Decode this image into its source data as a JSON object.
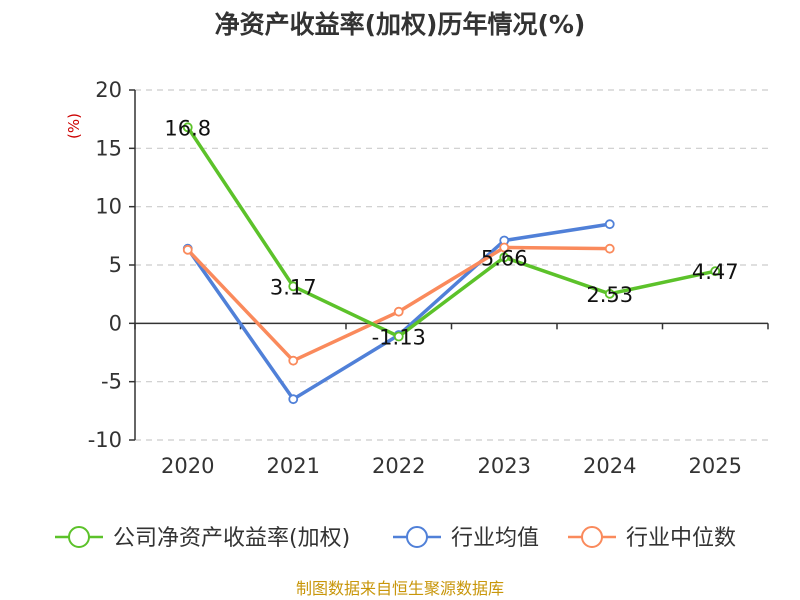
{
  "chart_data": {
    "type": "line",
    "title": "净资产收益率(加权)历年情况(%)",
    "y_unit": "(%)",
    "categories": [
      "2020",
      "2021",
      "2022",
      "2023",
      "2024",
      "2025"
    ],
    "ylim": [
      -10,
      20
    ],
    "yticks": [
      20,
      15,
      10,
      5,
      0,
      -5,
      -10
    ],
    "grid": true,
    "legend_position": "bottom",
    "series": [
      {
        "name": "公司净资产收益率(加权)",
        "color": "#5cc22a",
        "values": [
          16.8,
          3.17,
          -1.13,
          5.66,
          2.53,
          4.47
        ],
        "labels": [
          "16.8",
          "3.17",
          "-1.13",
          "5.66",
          "2.53",
          "4.47"
        ]
      },
      {
        "name": "行业均值",
        "color": "#5080d8",
        "values": [
          6.4,
          -6.5,
          -1.0,
          7.1,
          8.5,
          null
        ]
      },
      {
        "name": "行业中位数",
        "color": "#fa8a5c",
        "values": [
          6.3,
          -3.2,
          1.0,
          6.5,
          6.4,
          null
        ]
      }
    ]
  },
  "source": "制图数据来自恒生聚源数据库"
}
